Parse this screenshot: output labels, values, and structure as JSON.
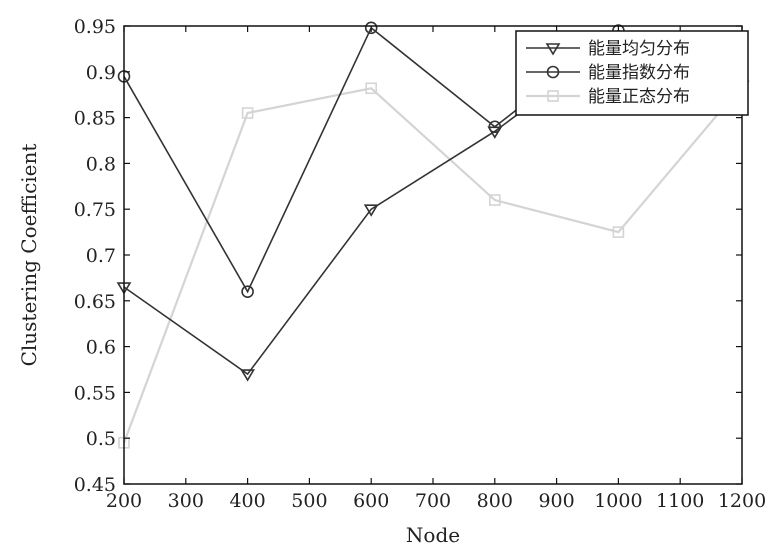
{
  "chart_data": {
    "type": "line",
    "title": "",
    "xlabel": "Node",
    "ylabel": "Clustering Coefficient",
    "xlim": [
      200,
      1200
    ],
    "ylim": [
      0.45,
      0.95
    ],
    "xticks": [
      200,
      300,
      400,
      500,
      600,
      700,
      800,
      900,
      1000,
      1100,
      1200
    ],
    "yticks": [
      0.45,
      0.5,
      0.55,
      0.6,
      0.65,
      0.7,
      0.75,
      0.8,
      0.85,
      0.9,
      0.95
    ],
    "ytick_labels": [
      "0.45",
      "0.5",
      "0.55",
      "0.6",
      "0.65",
      "0.7",
      "0.75",
      "0.8",
      "0.85",
      "0.9",
      "0.95"
    ],
    "grid": false,
    "legend_position": "top-right",
    "series": [
      {
        "name": "能量均匀分布",
        "marker": "triangle-down",
        "color": "#333333",
        "x": [
          200,
          400,
          600,
          800,
          1000,
          1200
        ],
        "y": [
          0.665,
          0.57,
          0.75,
          0.835,
          0.935,
          0.885
        ]
      },
      {
        "name": "能量指数分布",
        "marker": "circle",
        "color": "#333333",
        "x": [
          200,
          400,
          600,
          800,
          1000,
          1200
        ],
        "y": [
          0.895,
          0.66,
          0.948,
          0.84,
          0.945,
          0.888
        ]
      },
      {
        "name": "能量正态分布",
        "marker": "square",
        "color": "#d4d4d4",
        "x": [
          200,
          400,
          600,
          800,
          1000,
          1200
        ],
        "y": [
          0.495,
          0.855,
          0.882,
          0.76,
          0.725,
          0.885
        ]
      }
    ]
  }
}
